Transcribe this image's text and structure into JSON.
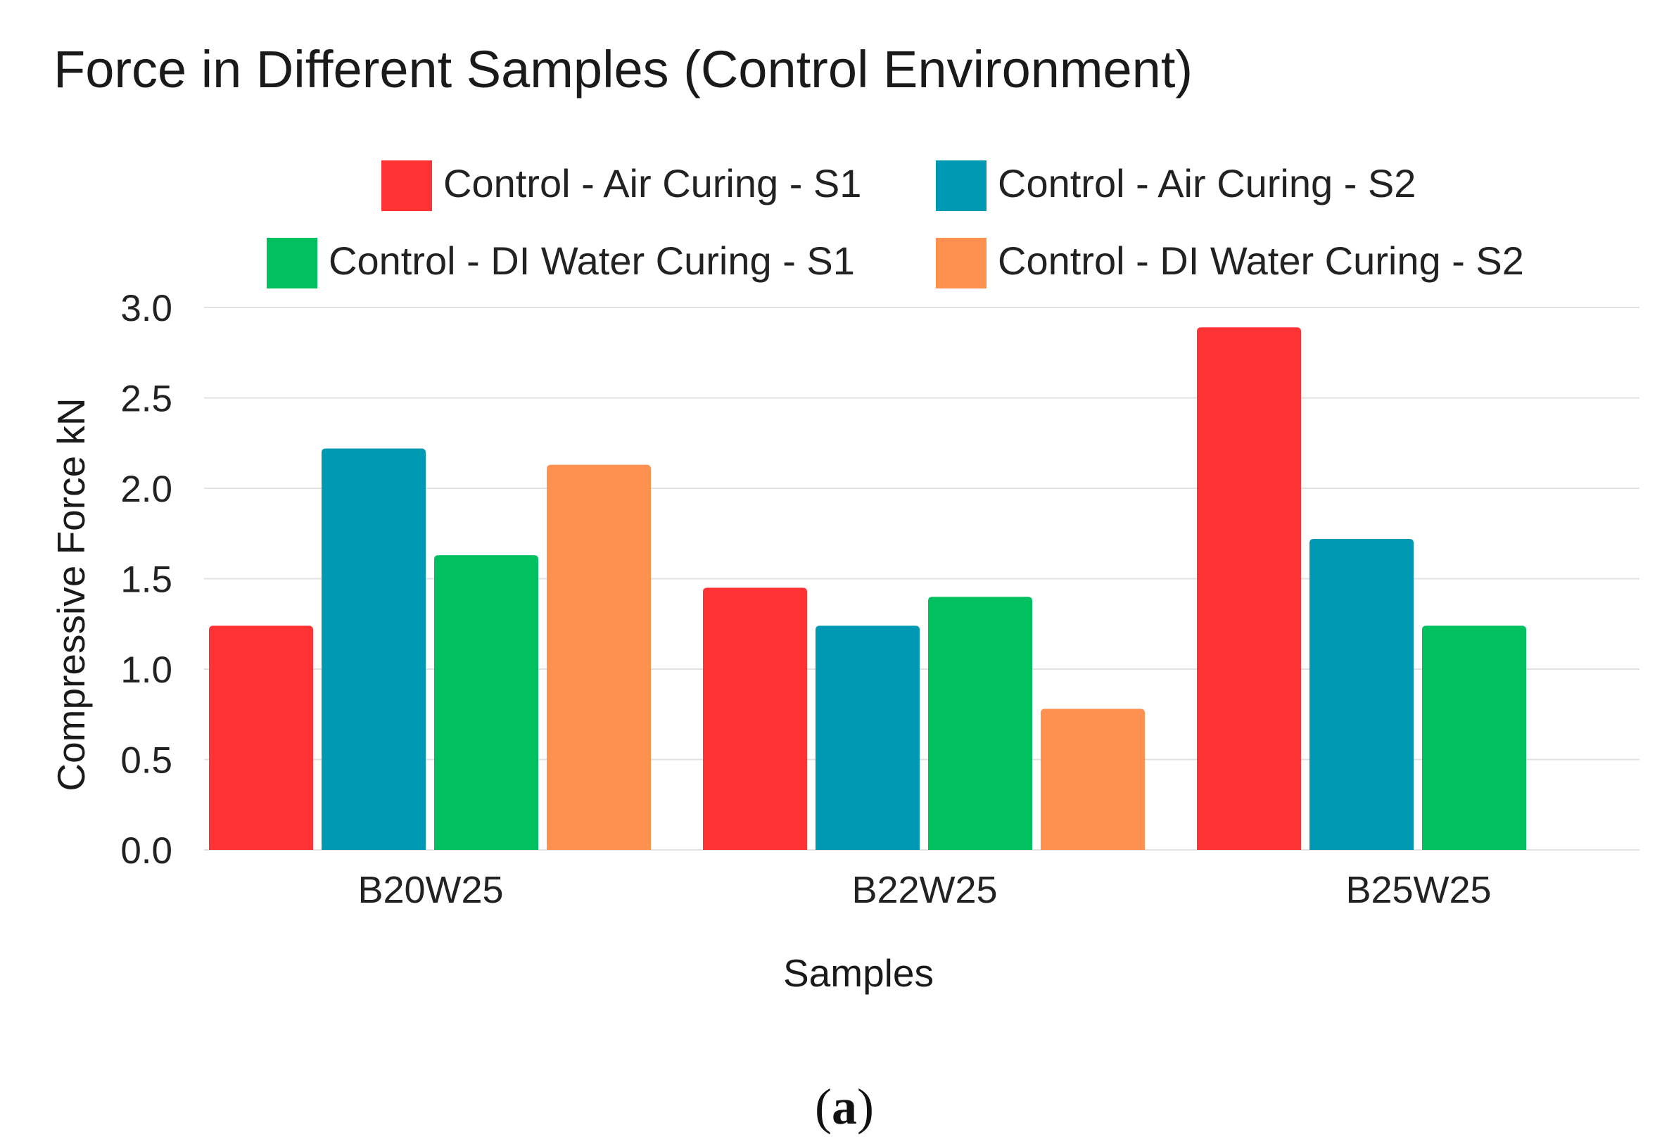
{
  "chart_data": {
    "type": "bar",
    "title": "Force in Different Samples (Control Environment)",
    "xlabel": "Samples",
    "ylabel": "Compressive Force kN",
    "ylim": [
      0,
      3.0
    ],
    "yticks": [
      "0.0",
      "0.5",
      "1.0",
      "1.5",
      "2.0",
      "2.5",
      "3.0"
    ],
    "grid": true,
    "legend_position": "top",
    "categories": [
      "B20W25",
      "B22W25",
      "B25W25"
    ],
    "series": [
      {
        "name": "Control - Air Curing - S1",
        "color": "#ff3333",
        "values": [
          1.24,
          1.45,
          2.89
        ]
      },
      {
        "name": "Control - Air Curing - S2",
        "color": "#0099b4",
        "values": [
          2.22,
          1.24,
          1.72
        ]
      },
      {
        "name": "Control - DI Water Curing - S1",
        "color": "#00c060",
        "values": [
          1.63,
          1.4,
          1.24
        ]
      },
      {
        "name": "Control - DI Water Curing - S2",
        "color": "#ff9150",
        "values": [
          2.13,
          0.78,
          null
        ]
      }
    ]
  },
  "caption": {
    "open": "(",
    "letter": "a",
    "close": ")"
  }
}
